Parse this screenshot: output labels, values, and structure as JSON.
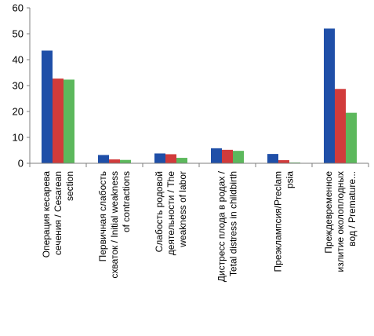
{
  "chart_data": {
    "type": "bar",
    "title": "",
    "xlabel": "",
    "ylabel": "",
    "ylim": [
      0,
      60
    ],
    "yticks": [
      0,
      10,
      20,
      30,
      40,
      50,
      60
    ],
    "grid": false,
    "legend": "none",
    "categories": [
      [
        "Операция кесарева",
        "сечения / Cesarean",
        "section"
      ],
      [
        "Первичная слабость",
        "схваток / Initial weakness",
        "of contractions"
      ],
      [
        "Слабость родовой",
        "деятельности / The",
        "weakness of labor"
      ],
      [
        "Дистресс плода в родах /",
        "Tetal distress in childbirth"
      ],
      [
        "Преэклампсия/Preclam",
        "psia"
      ],
      [
        "Преждевременное",
        "излитие околоплодных",
        "вод / Premature..."
      ]
    ],
    "series": [
      {
        "color": "#1f4fa8",
        "values": [
          43.5,
          3.2,
          3.8,
          5.8,
          3.6,
          52.0
        ]
      },
      {
        "color": "#d13b3b",
        "values": [
          32.7,
          1.5,
          3.5,
          5.2,
          1.2,
          28.7
        ]
      },
      {
        "color": "#5cb85c",
        "values": [
          32.3,
          1.3,
          2.1,
          4.8,
          0.3,
          19.5
        ]
      }
    ]
  }
}
